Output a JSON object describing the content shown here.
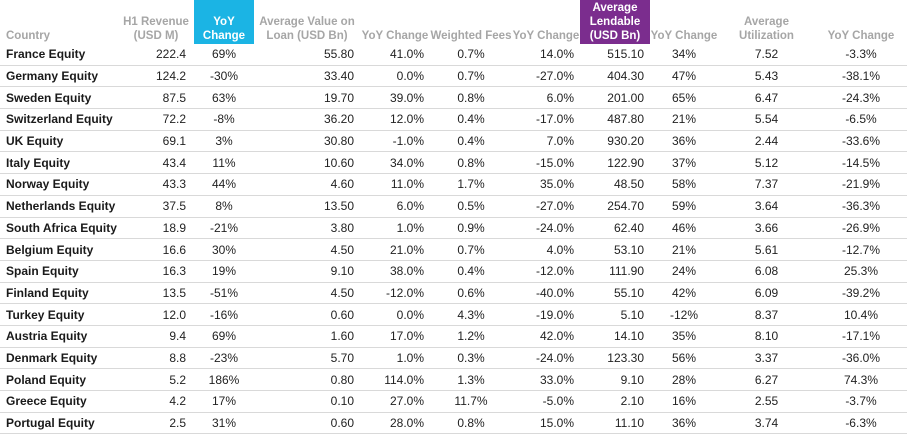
{
  "chart_data": {
    "type": "table",
    "header_colors": {
      "highlight_blue": "#1bb4e4",
      "highlight_purple": "#7b2d8e",
      "header_text": "#a6a6a6"
    },
    "columns": [
      "Country",
      "H1 Revenue (USD M)",
      "YoY Change",
      "Average Value on Loan (USD Bn)",
      "YoY Change",
      "Weighted Fees",
      "YoY Change",
      "Average Lendable (USD Bn)",
      "YoY Change",
      "Average Utilization",
      "YoY Change"
    ],
    "rows": [
      [
        "France Equity",
        "222.4",
        "69%",
        "55.80",
        "41.0%",
        "0.7%",
        "14.0%",
        "515.10",
        "34%",
        "7.52",
        "-3.3%"
      ],
      [
        "Germany Equity",
        "124.2",
        "-30%",
        "33.40",
        "0.0%",
        "0.7%",
        "-27.0%",
        "404.30",
        "47%",
        "5.43",
        "-38.1%"
      ],
      [
        "Sweden Equity",
        "87.5",
        "63%",
        "19.70",
        "39.0%",
        "0.8%",
        "6.0%",
        "201.00",
        "65%",
        "6.47",
        "-24.3%"
      ],
      [
        "Switzerland Equity",
        "72.2",
        "-8%",
        "36.20",
        "12.0%",
        "0.4%",
        "-17.0%",
        "487.80",
        "21%",
        "5.54",
        "-6.5%"
      ],
      [
        "UK Equity",
        "69.1",
        "3%",
        "30.80",
        "-1.0%",
        "0.4%",
        "7.0%",
        "930.20",
        "36%",
        "2.44",
        "-33.6%"
      ],
      [
        "Italy Equity",
        "43.4",
        "11%",
        "10.60",
        "34.0%",
        "0.8%",
        "-15.0%",
        "122.90",
        "37%",
        "5.12",
        "-14.5%"
      ],
      [
        "Norway Equity",
        "43.3",
        "44%",
        "4.60",
        "11.0%",
        "1.7%",
        "35.0%",
        "48.50",
        "58%",
        "7.37",
        "-21.9%"
      ],
      [
        "Netherlands Equity",
        "37.5",
        "8%",
        "13.50",
        "6.0%",
        "0.5%",
        "-27.0%",
        "254.70",
        "59%",
        "3.64",
        "-36.3%"
      ],
      [
        "South Africa Equity",
        "18.9",
        "-21%",
        "3.80",
        "1.0%",
        "0.9%",
        "-24.0%",
        "62.40",
        "46%",
        "3.66",
        "-26.9%"
      ],
      [
        "Belgium Equity",
        "16.6",
        "30%",
        "4.50",
        "21.0%",
        "0.7%",
        "4.0%",
        "53.10",
        "21%",
        "5.61",
        "-12.7%"
      ],
      [
        "Spain Equity",
        "16.3",
        "19%",
        "9.10",
        "38.0%",
        "0.4%",
        "-12.0%",
        "111.90",
        "24%",
        "6.08",
        "25.3%"
      ],
      [
        "Finland Equity",
        "13.5",
        "-51%",
        "4.50",
        "-12.0%",
        "0.6%",
        "-40.0%",
        "55.10",
        "42%",
        "6.09",
        "-39.2%"
      ],
      [
        "Turkey Equity",
        "12.0",
        "-16%",
        "0.60",
        "0.0%",
        "4.3%",
        "-19.0%",
        "5.10",
        "-12%",
        "8.37",
        "10.4%"
      ],
      [
        "Austria Equity",
        "9.4",
        "69%",
        "1.60",
        "17.0%",
        "1.2%",
        "42.0%",
        "14.10",
        "35%",
        "8.10",
        "-17.1%"
      ],
      [
        "Denmark Equity",
        "8.8",
        "-23%",
        "5.70",
        "1.0%",
        "0.3%",
        "-24.0%",
        "123.30",
        "56%",
        "3.37",
        "-36.0%"
      ],
      [
        "Poland Equity",
        "5.2",
        "186%",
        "0.80",
        "114.0%",
        "1.3%",
        "33.0%",
        "9.10",
        "28%",
        "6.27",
        "74.3%"
      ],
      [
        "Greece Equity",
        "4.2",
        "17%",
        "0.10",
        "27.0%",
        "11.7%",
        "-5.0%",
        "2.10",
        "16%",
        "2.55",
        "-3.7%"
      ],
      [
        "Portugal Equity",
        "2.5",
        "31%",
        "0.60",
        "28.0%",
        "0.8%",
        "15.0%",
        "11.10",
        "36%",
        "3.74",
        "-6.3%"
      ]
    ]
  }
}
